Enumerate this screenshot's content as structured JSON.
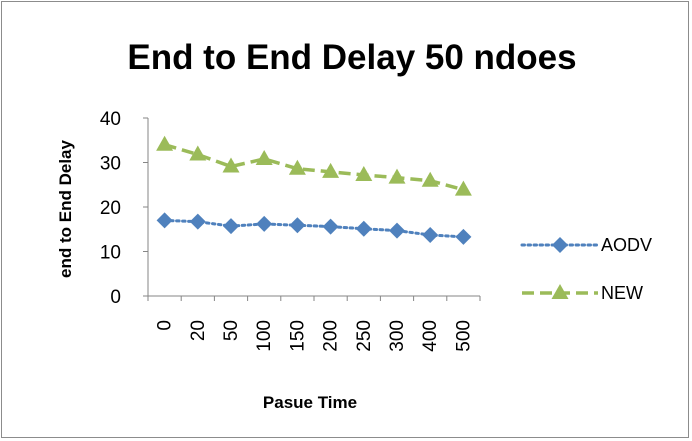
{
  "chart_data": {
    "type": "line",
    "title": "End to End Delay 50 ndoes",
    "xlabel": "Pasue Time",
    "ylabel": "end to End Delay",
    "categories": [
      "0",
      "20",
      "50",
      "100",
      "150",
      "200",
      "250",
      "300",
      "400",
      "500"
    ],
    "ylim": [
      0,
      40
    ],
    "yticks": [
      "0",
      "10",
      "20",
      "30",
      "40"
    ],
    "grid": false,
    "legend_position": "right",
    "series": [
      {
        "name": "AODV",
        "values": [
          17,
          16.7,
          15.7,
          16.2,
          15.9,
          15.6,
          15.1,
          14.7,
          13.7,
          13.3
        ],
        "color": "#4f81bd",
        "marker": "diamond",
        "line_style": "dotted"
      },
      {
        "name": "NEW",
        "values": [
          34,
          31.8,
          29.1,
          30.8,
          28.6,
          27.9,
          27.2,
          26.6,
          25.9,
          23.9
        ],
        "color": "#9bbb59",
        "marker": "triangle",
        "line_style": "dashed"
      }
    ]
  }
}
